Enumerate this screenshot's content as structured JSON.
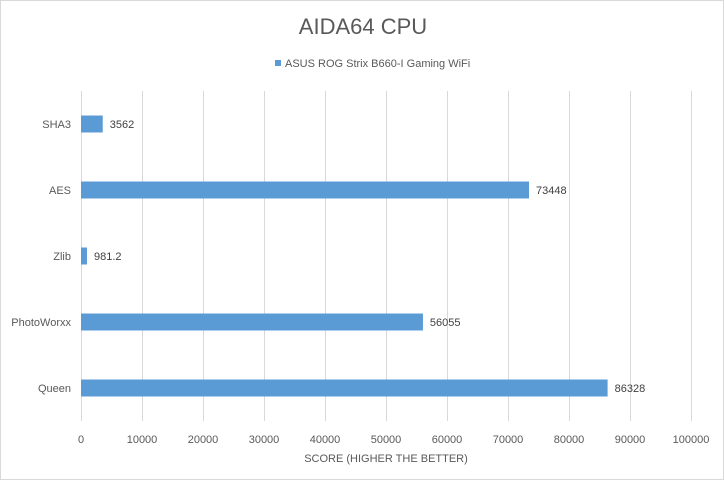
{
  "chart_data": {
    "type": "bar",
    "orientation": "horizontal",
    "title": "AIDA64 CPU",
    "xlabel": "SCORE (HIGHER THE BETTER)",
    "ylabel": "",
    "categories": [
      "SHA3",
      "AES",
      "Zlib",
      "PhotoWorxx",
      "Queen"
    ],
    "series": [
      {
        "name": "ASUS ROG Strix B660-I Gaming WiFi",
        "values": [
          3562,
          73448,
          981.2,
          56055,
          86328
        ],
        "labels": [
          "3562",
          "73448",
          "981.2",
          "56055",
          "86328"
        ],
        "color": "#5b9bd5"
      }
    ],
    "xlim": [
      0,
      100000
    ],
    "xticks": [
      0,
      10000,
      20000,
      30000,
      40000,
      50000,
      60000,
      70000,
      80000,
      90000,
      100000
    ],
    "xtick_labels": [
      "0",
      "10000",
      "20000",
      "30000",
      "40000",
      "50000",
      "60000",
      "70000",
      "80000",
      "90000",
      "100000"
    ],
    "grid": true,
    "legend_position": "top"
  }
}
